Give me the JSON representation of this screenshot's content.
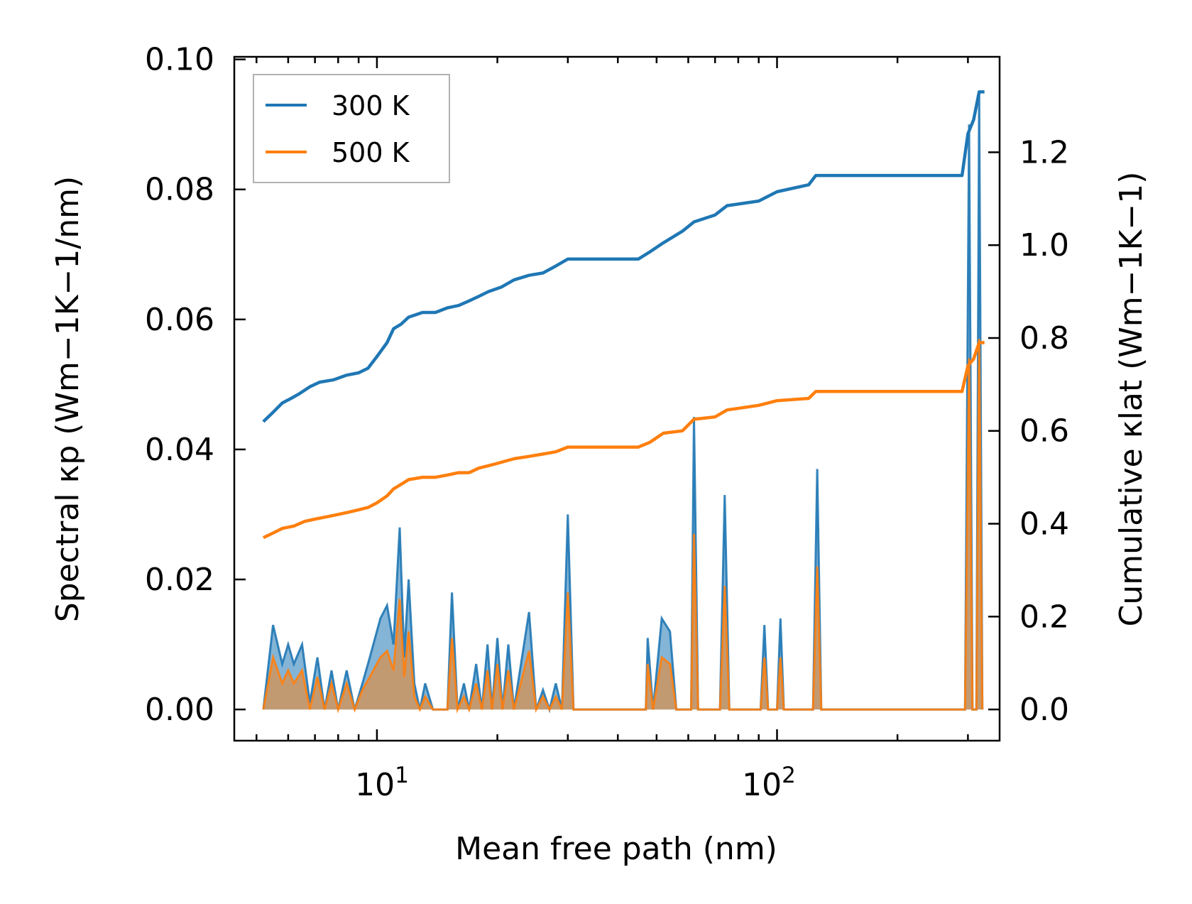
{
  "chart_data": {
    "type": "line",
    "xlabel": "Mean free path (nm)",
    "ylabel": "Spectral κp (Wm−1K−1/nm)",
    "ylabel2": "Cumulative κlat (Wm−1K−1)",
    "x_scale": "log",
    "xlim": [
      4.4,
      360
    ],
    "ylim": [
      -0.0048,
      0.1004
    ],
    "y2lim": [
      -0.0672,
      1.4056
    ],
    "x_ticks": [
      {
        "value": 10,
        "base": "10",
        "exp": "1"
      },
      {
        "value": 100,
        "base": "10",
        "exp": "2"
      }
    ],
    "y_ticks": [
      "0.00",
      "0.02",
      "0.04",
      "0.06",
      "0.08",
      "0.10"
    ],
    "y_tick_values": [
      0,
      0.02,
      0.04,
      0.06,
      0.08,
      0.1
    ],
    "y2_ticks": [
      "0.0",
      "0.2",
      "0.4",
      "0.6",
      "0.8",
      "1.0",
      "1.2"
    ],
    "y2_tick_values": [
      0,
      0.2,
      0.4,
      0.6,
      0.8,
      1.0,
      1.2
    ],
    "legend": {
      "position": "top-left",
      "entries": [
        "300 K",
        "500 K"
      ]
    },
    "series": [
      {
        "name": "300 K",
        "color": "#1f77b4",
        "cumulative": [
          [
            5.2,
            0.62
          ],
          [
            5.5,
            0.64
          ],
          [
            5.8,
            0.66
          ],
          [
            6.1,
            0.67
          ],
          [
            6.4,
            0.68
          ],
          [
            6.8,
            0.695
          ],
          [
            7.2,
            0.705
          ],
          [
            7.8,
            0.71
          ],
          [
            8.4,
            0.72
          ],
          [
            9.0,
            0.725
          ],
          [
            9.5,
            0.735
          ],
          [
            10.0,
            0.76
          ],
          [
            10.6,
            0.79
          ],
          [
            11.0,
            0.82
          ],
          [
            11.5,
            0.83
          ],
          [
            12.0,
            0.845
          ],
          [
            13.0,
            0.855
          ],
          [
            14.0,
            0.855
          ],
          [
            15.0,
            0.865
          ],
          [
            16.0,
            0.87
          ],
          [
            17.0,
            0.88
          ],
          [
            18.0,
            0.89
          ],
          [
            19.0,
            0.9
          ],
          [
            20.5,
            0.91
          ],
          [
            22.0,
            0.925
          ],
          [
            24.0,
            0.935
          ],
          [
            26.0,
            0.94
          ],
          [
            28.0,
            0.955
          ],
          [
            30.0,
            0.97
          ],
          [
            45.0,
            0.97
          ],
          [
            48.0,
            0.985
          ],
          [
            52.0,
            1.005
          ],
          [
            58.0,
            1.03
          ],
          [
            62.0,
            1.05
          ],
          [
            70.0,
            1.065
          ],
          [
            75.0,
            1.085
          ],
          [
            90.0,
            1.095
          ],
          [
            100.0,
            1.115
          ],
          [
            120.0,
            1.13
          ],
          [
            125.0,
            1.15
          ],
          [
            290.0,
            1.15
          ],
          [
            300.0,
            1.24
          ],
          [
            310.0,
            1.27
          ],
          [
            320.0,
            1.33
          ],
          [
            330.0,
            1.33
          ]
        ],
        "spectral": [
          [
            5.2,
            0
          ],
          [
            5.5,
            0.013
          ],
          [
            5.8,
            0.007
          ],
          [
            6.0,
            0.01
          ],
          [
            6.2,
            0.007
          ],
          [
            6.5,
            0.01
          ],
          [
            6.8,
            0.001
          ],
          [
            7.1,
            0.008
          ],
          [
            7.4,
            0
          ],
          [
            7.7,
            0.006
          ],
          [
            8.0,
            0
          ],
          [
            8.4,
            0.006
          ],
          [
            8.8,
            0
          ],
          [
            9.2,
            0.004
          ],
          [
            9.6,
            0.008
          ],
          [
            10.2,
            0.014
          ],
          [
            10.6,
            0.016
          ],
          [
            11.0,
            0.01
          ],
          [
            11.4,
            0.028
          ],
          [
            11.7,
            0.008
          ],
          [
            12.0,
            0.02
          ],
          [
            12.4,
            0.004
          ],
          [
            12.8,
            0
          ],
          [
            13.2,
            0.004
          ],
          [
            13.8,
            0
          ],
          [
            15.0,
            0
          ],
          [
            15.4,
            0.018
          ],
          [
            15.9,
            0
          ],
          [
            16.5,
            0.004
          ],
          [
            17.0,
            0
          ],
          [
            17.7,
            0.007
          ],
          [
            18.3,
            0
          ],
          [
            18.9,
            0.01
          ],
          [
            19.4,
            0
          ],
          [
            20.0,
            0.011
          ],
          [
            20.6,
            0
          ],
          [
            21.3,
            0.01
          ],
          [
            22.0,
            0
          ],
          [
            24.0,
            0.015
          ],
          [
            25.0,
            0
          ],
          [
            26.0,
            0.003
          ],
          [
            27.0,
            0
          ],
          [
            28.0,
            0.004
          ],
          [
            29.0,
            0
          ],
          [
            30.0,
            0.03
          ],
          [
            31.0,
            0
          ],
          [
            47.0,
            0
          ],
          [
            47.5,
            0.011
          ],
          [
            49.0,
            0
          ],
          [
            51.5,
            0.014
          ],
          [
            54.0,
            0.012
          ],
          [
            56.0,
            0
          ],
          [
            61.0,
            0
          ],
          [
            62.0,
            0.045
          ],
          [
            63.5,
            0
          ],
          [
            72.0,
            0
          ],
          [
            74.0,
            0.033
          ],
          [
            76.0,
            0
          ],
          [
            91.0,
            0
          ],
          [
            93.0,
            0.013
          ],
          [
            95.0,
            0
          ],
          [
            100.0,
            0
          ],
          [
            102.0,
            0.014
          ],
          [
            104.0,
            0
          ],
          [
            123.0,
            0
          ],
          [
            126.0,
            0.037
          ],
          [
            129.0,
            0
          ],
          [
            295.0,
            0
          ],
          [
            302.0,
            0.09
          ],
          [
            308.0,
            0
          ],
          [
            315.0,
            0
          ],
          [
            320.0,
            0.095
          ],
          [
            326.0,
            0
          ]
        ]
      },
      {
        "name": "500 K",
        "color": "#ff7f0e",
        "cumulative": [
          [
            5.2,
            0.37
          ],
          [
            5.5,
            0.38
          ],
          [
            5.8,
            0.39
          ],
          [
            6.2,
            0.395
          ],
          [
            6.6,
            0.405
          ],
          [
            7.0,
            0.41
          ],
          [
            7.5,
            0.415
          ],
          [
            8.0,
            0.42
          ],
          [
            8.5,
            0.425
          ],
          [
            9.0,
            0.43
          ],
          [
            9.5,
            0.435
          ],
          [
            10.0,
            0.445
          ],
          [
            10.6,
            0.46
          ],
          [
            11.0,
            0.475
          ],
          [
            11.5,
            0.485
          ],
          [
            12.0,
            0.495
          ],
          [
            13.0,
            0.5
          ],
          [
            14.0,
            0.5
          ],
          [
            15.0,
            0.505
          ],
          [
            16.0,
            0.51
          ],
          [
            17.0,
            0.51
          ],
          [
            18.0,
            0.52
          ],
          [
            19.0,
            0.525
          ],
          [
            20.0,
            0.53
          ],
          [
            22.0,
            0.54
          ],
          [
            24.0,
            0.545
          ],
          [
            26.0,
            0.55
          ],
          [
            28.0,
            0.555
          ],
          [
            30.0,
            0.565
          ],
          [
            45.0,
            0.565
          ],
          [
            48.0,
            0.575
          ],
          [
            52.0,
            0.595
          ],
          [
            58.0,
            0.6
          ],
          [
            62.0,
            0.625
          ],
          [
            70.0,
            0.63
          ],
          [
            75.0,
            0.645
          ],
          [
            90.0,
            0.655
          ],
          [
            100.0,
            0.665
          ],
          [
            120.0,
            0.67
          ],
          [
            125.0,
            0.685
          ],
          [
            290.0,
            0.685
          ],
          [
            300.0,
            0.74
          ],
          [
            310.0,
            0.755
          ],
          [
            320.0,
            0.79
          ],
          [
            330.0,
            0.79
          ]
        ],
        "spectral": [
          [
            5.2,
            0
          ],
          [
            5.5,
            0.008
          ],
          [
            5.8,
            0.004
          ],
          [
            6.0,
            0.006
          ],
          [
            6.2,
            0.004
          ],
          [
            6.5,
            0.006
          ],
          [
            6.8,
            0
          ],
          [
            7.1,
            0.005
          ],
          [
            7.4,
            0
          ],
          [
            7.7,
            0.004
          ],
          [
            8.0,
            0
          ],
          [
            8.4,
            0.004
          ],
          [
            8.8,
            0
          ],
          [
            9.2,
            0.003
          ],
          [
            9.6,
            0.005
          ],
          [
            10.2,
            0.008
          ],
          [
            10.6,
            0.009
          ],
          [
            11.0,
            0.006
          ],
          [
            11.4,
            0.017
          ],
          [
            11.7,
            0.005
          ],
          [
            12.0,
            0.012
          ],
          [
            12.4,
            0.002
          ],
          [
            12.8,
            0
          ],
          [
            13.2,
            0.002
          ],
          [
            13.8,
            0
          ],
          [
            15.0,
            0
          ],
          [
            15.4,
            0.011
          ],
          [
            15.9,
            0
          ],
          [
            16.5,
            0.002
          ],
          [
            17.0,
            0
          ],
          [
            17.7,
            0.004
          ],
          [
            18.3,
            0
          ],
          [
            18.9,
            0.006
          ],
          [
            19.4,
            0
          ],
          [
            20.0,
            0.007
          ],
          [
            20.6,
            0
          ],
          [
            21.3,
            0.006
          ],
          [
            22.0,
            0
          ],
          [
            24.0,
            0.009
          ],
          [
            25.0,
            0
          ],
          [
            26.0,
            0.002
          ],
          [
            27.0,
            0
          ],
          [
            28.0,
            0.002
          ],
          [
            29.0,
            0
          ],
          [
            30.0,
            0.018
          ],
          [
            31.0,
            0
          ],
          [
            47.0,
            0
          ],
          [
            47.5,
            0.007
          ],
          [
            49.0,
            0
          ],
          [
            51.5,
            0.008
          ],
          [
            54.0,
            0.007
          ],
          [
            56.0,
            0
          ],
          [
            61.0,
            0
          ],
          [
            62.0,
            0.027
          ],
          [
            63.5,
            0
          ],
          [
            72.0,
            0
          ],
          [
            74.0,
            0.019
          ],
          [
            76.0,
            0
          ],
          [
            91.0,
            0
          ],
          [
            93.0,
            0.008
          ],
          [
            95.0,
            0
          ],
          [
            100.0,
            0
          ],
          [
            102.0,
            0.008
          ],
          [
            104.0,
            0
          ],
          [
            123.0,
            0
          ],
          [
            126.0,
            0.022
          ],
          [
            129.0,
            0
          ],
          [
            295.0,
            0
          ],
          [
            302.0,
            0.054
          ],
          [
            308.0,
            0
          ],
          [
            315.0,
            0
          ],
          [
            320.0,
            0.057
          ],
          [
            326.0,
            0
          ]
        ]
      }
    ]
  }
}
